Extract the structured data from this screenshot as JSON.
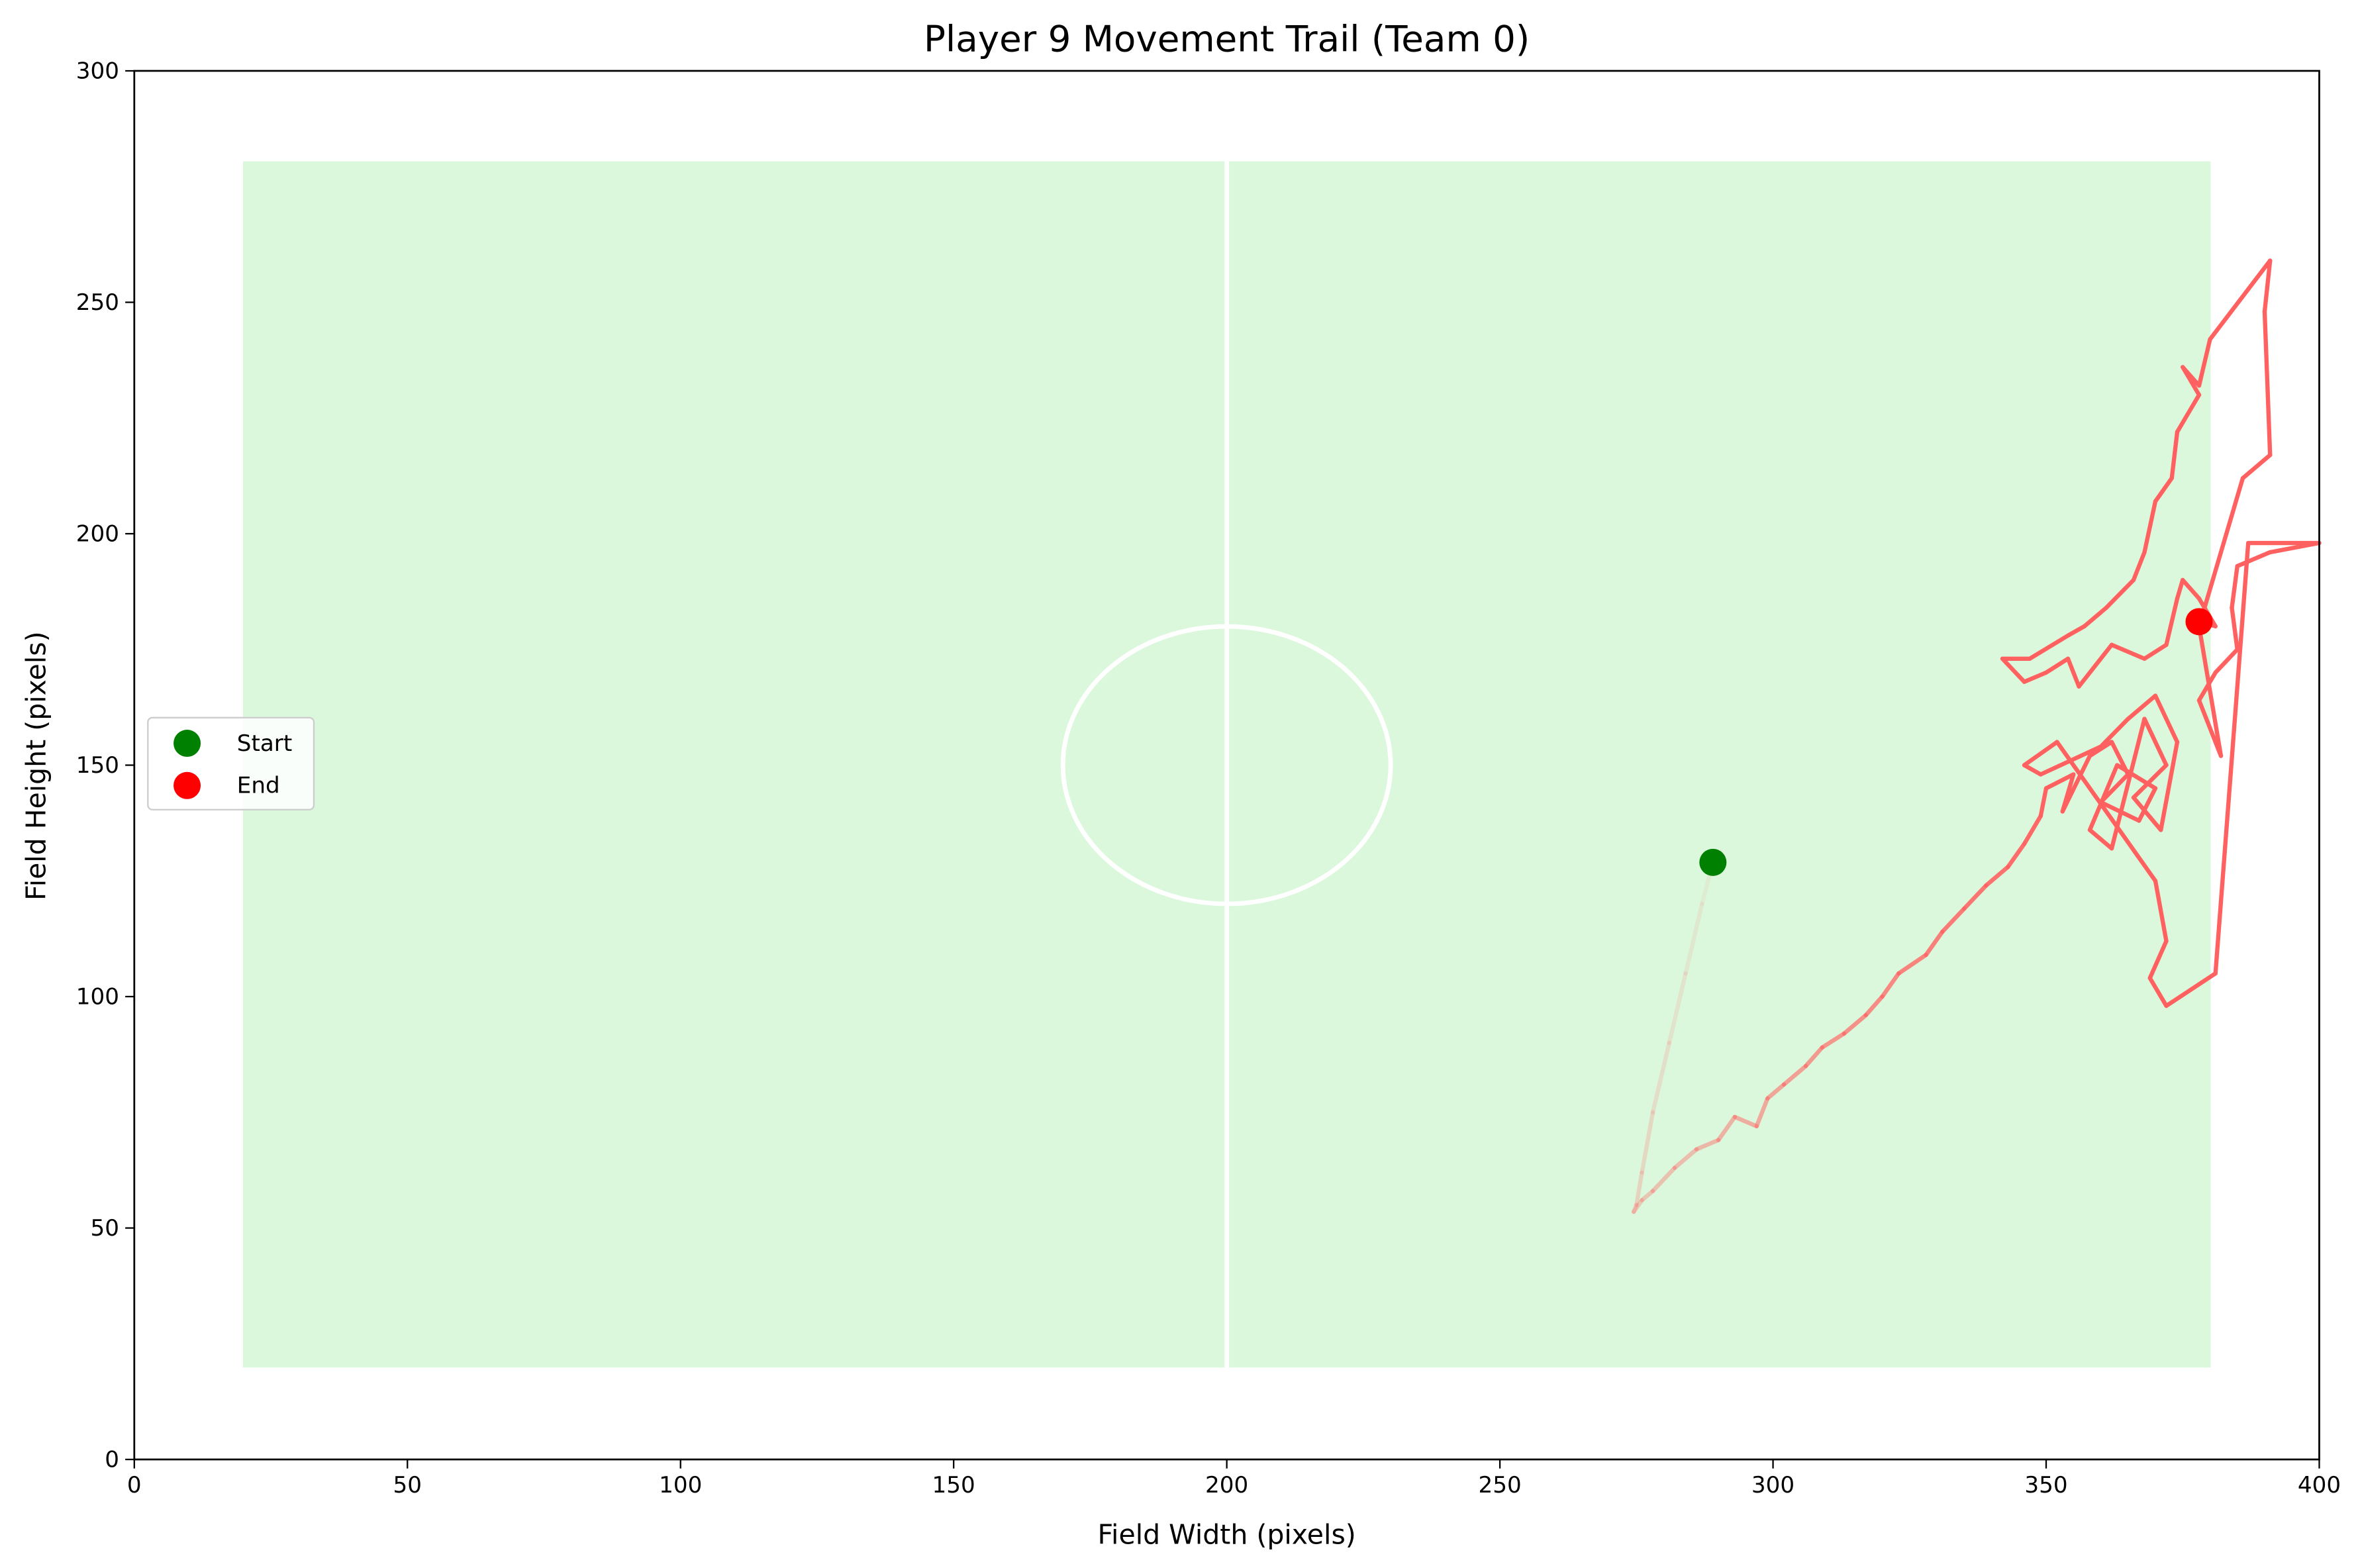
{
  "chart_data": {
    "type": "line",
    "title": "Player 9 Movement Trail (Team 0)",
    "x_label": "Field Width (pixels)",
    "y_label": "Field Height (pixels)",
    "xlim": [
      0,
      400
    ],
    "ylim": [
      0,
      300
    ],
    "xticks": [
      0,
      50,
      100,
      150,
      200,
      250,
      300,
      350,
      400
    ],
    "yticks": [
      0,
      50,
      100,
      150,
      200,
      250,
      300
    ],
    "legend": "center left",
    "trail": {
      "color": "#ff6161",
      "x": [
        289,
        287,
        284,
        281,
        278,
        276,
        275,
        274.5,
        276,
        278,
        282,
        286,
        290,
        293,
        297,
        299,
        302,
        306,
        309,
        313,
        317,
        320,
        323,
        328,
        331,
        335,
        339,
        343,
        346,
        349,
        350,
        355,
        353,
        358,
        362,
        365,
        360,
        367,
        370,
        363,
        358,
        362,
        368,
        372,
        366,
        371,
        374,
        370,
        365,
        360,
        349,
        346,
        352,
        370,
        372,
        369,
        371,
        372,
        381,
        387,
        400,
        391,
        385,
        384,
        385,
        381,
        378,
        382,
        378,
        383,
        386,
        391,
        390,
        391,
        380,
        378,
        375,
        378,
        374,
        373,
        370,
        368,
        366,
        361,
        357,
        354,
        347,
        342,
        346,
        350,
        354,
        356,
        362,
        368,
        372,
        374,
        375,
        378,
        381,
        378
      ],
      "y": [
        129,
        120,
        105,
        90,
        75,
        62,
        55,
        53.5,
        56,
        58,
        63,
        67,
        69,
        74,
        72,
        78,
        81,
        85,
        89,
        92,
        96,
        100,
        105,
        109,
        114,
        119,
        124,
        128,
        133,
        139,
        145,
        148,
        140,
        152,
        155,
        148,
        142,
        138,
        145,
        150,
        136,
        132,
        160,
        150,
        143,
        136,
        155,
        165,
        160,
        154,
        148,
        150,
        155,
        125,
        112,
        104,
        100,
        98,
        105,
        198,
        198,
        196,
        193,
        184,
        175,
        170,
        164,
        152,
        180,
        200,
        212,
        217,
        248,
        259,
        242,
        232,
        236,
        230,
        222,
        212,
        207,
        196,
        190,
        184,
        180,
        178,
        173,
        173,
        168,
        170,
        173,
        167,
        176,
        173,
        176,
        186,
        190,
        186,
        180,
        181
      ]
    },
    "markers": [
      {
        "name": "Start",
        "color": "#008000",
        "x": 289,
        "y": 129
      },
      {
        "name": "End",
        "color": "#ff0000",
        "x": 378,
        "y": 181
      }
    ]
  }
}
